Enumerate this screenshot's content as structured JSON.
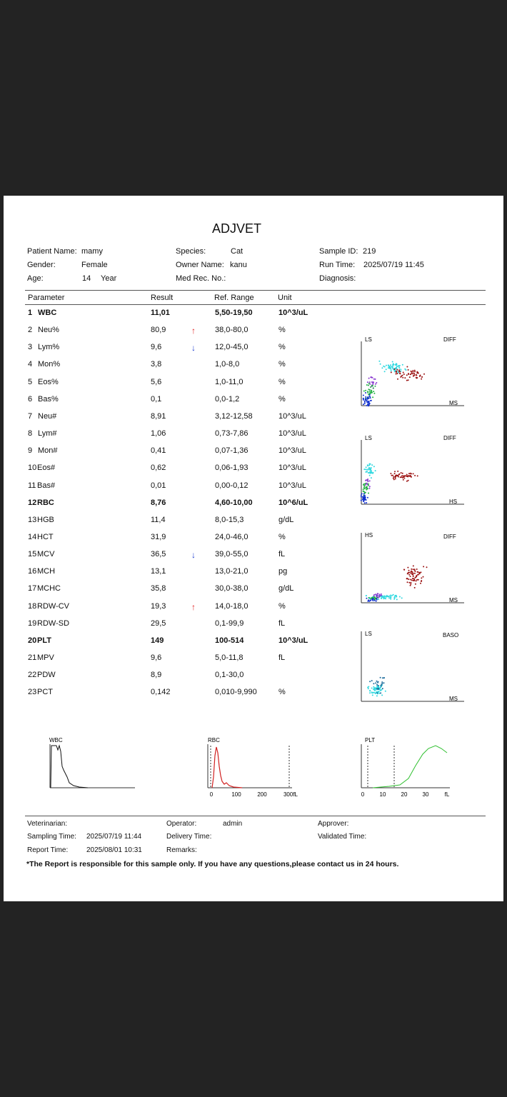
{
  "report": {
    "title": "ADJVET",
    "patient": {
      "name_label": "Patient Name:",
      "name": "mamy",
      "gender_label": "Gender:",
      "gender": "Female",
      "age_label": "Age:",
      "age": "14",
      "age_unit": "Year"
    },
    "animal": {
      "species_label": "Species:",
      "species": "Cat",
      "owner_label": "Owner Name:",
      "owner": "kanu",
      "medrec_label": "Med Rec. No.:"
    },
    "sample": {
      "id_label": "Sample ID:",
      "id": "219",
      "runtime_label": "Run Time:",
      "runtime": "2025/07/19 11:45",
      "diagnosis_label": "Diagnosis:"
    },
    "columns": {
      "parameter": "Parameter",
      "result": "Result",
      "range": "Ref. Range",
      "unit": "Unit"
    },
    "rows": [
      {
        "num": "1",
        "name": "WBC",
        "result": "11,01",
        "flag": "",
        "range": "5,50-19,50",
        "unit": "10^3/uL",
        "bold": true
      },
      {
        "num": "2",
        "name": "Neu%",
        "result": "80,9",
        "flag": "↑",
        "range": "38,0-80,0",
        "unit": "%",
        "bold": false
      },
      {
        "num": "3",
        "name": "Lym%",
        "result": "9,6",
        "flag": "↓",
        "range": "12,0-45,0",
        "unit": "%",
        "bold": false
      },
      {
        "num": "4",
        "name": "Mon%",
        "result": "3,8",
        "flag": "",
        "range": "1,0-8,0",
        "unit": "%",
        "bold": false
      },
      {
        "num": "5",
        "name": "Eos%",
        "result": "5,6",
        "flag": "",
        "range": "1,0-11,0",
        "unit": "%",
        "bold": false
      },
      {
        "num": "6",
        "name": "Bas%",
        "result": "0,1",
        "flag": "",
        "range": "0,0-1,2",
        "unit": "%",
        "bold": false
      },
      {
        "num": "7",
        "name": "Neu#",
        "result": "8,91",
        "flag": "",
        "range": "3,12-12,58",
        "unit": "10^3/uL",
        "bold": false
      },
      {
        "num": "8",
        "name": "Lym#",
        "result": "1,06",
        "flag": "",
        "range": "0,73-7,86",
        "unit": "10^3/uL",
        "bold": false
      },
      {
        "num": "9",
        "name": "Mon#",
        "result": "0,41",
        "flag": "",
        "range": "0,07-1,36",
        "unit": "10^3/uL",
        "bold": false
      },
      {
        "num": "10",
        "name": "Eos#",
        "result": "0,62",
        "flag": "",
        "range": "0,06-1,93",
        "unit": "10^3/uL",
        "bold": false
      },
      {
        "num": "11",
        "name": "Bas#",
        "result": "0,01",
        "flag": "",
        "range": "0,00-0,12",
        "unit": "10^3/uL",
        "bold": false
      },
      {
        "num": "12",
        "name": "RBC",
        "result": "8,76",
        "flag": "",
        "range": "4,60-10,00",
        "unit": "10^6/uL",
        "bold": true
      },
      {
        "num": "13",
        "name": "HGB",
        "result": "11,4",
        "flag": "",
        "range": "8,0-15,3",
        "unit": "g/dL",
        "bold": false
      },
      {
        "num": "14",
        "name": "HCT",
        "result": "31,9",
        "flag": "",
        "range": "24,0-46,0",
        "unit": "%",
        "bold": false
      },
      {
        "num": "15",
        "name": "MCV",
        "result": "36,5",
        "flag": "↓",
        "range": "39,0-55,0",
        "unit": "fL",
        "bold": false
      },
      {
        "num": "16",
        "name": "MCH",
        "result": "13,1",
        "flag": "",
        "range": "13,0-21,0",
        "unit": "pg",
        "bold": false
      },
      {
        "num": "17",
        "name": "MCHC",
        "result": "35,8",
        "flag": "",
        "range": "30,0-38,0",
        "unit": "g/dL",
        "bold": false
      },
      {
        "num": "18",
        "name": "RDW-CV",
        "result": "19,3",
        "flag": "↑",
        "range": "14,0-18,0",
        "unit": "%",
        "bold": false
      },
      {
        "num": "19",
        "name": "RDW-SD",
        "result": "29,5",
        "flag": "",
        "range": "0,1-99,9",
        "unit": "fL",
        "bold": false
      },
      {
        "num": "20",
        "name": "PLT",
        "result": "149",
        "flag": "",
        "range": "100-514",
        "unit": "10^3/uL",
        "bold": true
      },
      {
        "num": "21",
        "name": "MPV",
        "result": "9,6",
        "flag": "",
        "range": "5,0-11,8",
        "unit": "fL",
        "bold": false
      },
      {
        "num": "22",
        "name": "PDW",
        "result": "8,9",
        "flag": "",
        "range": "0,1-30,0",
        "unit": "",
        "bold": false
      },
      {
        "num": "23",
        "name": "PCT",
        "result": "0,142",
        "flag": "",
        "range": "0,010-9,990",
        "unit": "%",
        "bold": false
      }
    ],
    "scatter": [
      {
        "y_label": "LS",
        "title": "DIFF",
        "x_label": "MS"
      },
      {
        "y_label": "LS",
        "title": "DIFF",
        "x_label": "HS"
      },
      {
        "y_label": "HS",
        "title": "DIFF",
        "x_label": "MS"
      },
      {
        "y_label": "LS",
        "title": "BASO",
        "x_label": "MS"
      }
    ],
    "histograms": {
      "wbc": {
        "label": "WBC"
      },
      "rbc": {
        "label": "RBC",
        "ticks": [
          "0",
          "100",
          "200",
          "300fL"
        ]
      },
      "plt": {
        "label": "PLT",
        "ticks": [
          "0",
          "10",
          "20",
          "30",
          "fL"
        ]
      }
    },
    "footer": {
      "vet_label": "Veterinarian:",
      "sampling_label": "Sampling Time:",
      "sampling": "2025/07/19 11:44",
      "report_label": "Report Time:",
      "report": "2025/08/01 10:31",
      "operator_label": "Operator:",
      "operator": "admin",
      "delivery_label": "Delivery Time:",
      "remarks_label": "Remarks:",
      "approver_label": "Approver:",
      "validated_label": "Validated Time:",
      "disclaimer": "*The Report is responsible for this sample only. If you have any questions,please contact us in 24 hours."
    },
    "colors": {
      "up_arrow": "#e02020",
      "down_arrow": "#2040d0",
      "rbc_curve": "#d02020",
      "plt_curve": "#30c030"
    }
  }
}
